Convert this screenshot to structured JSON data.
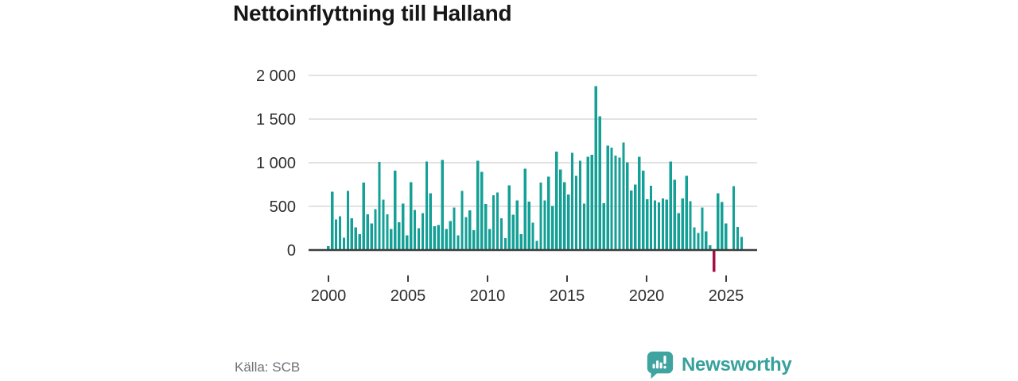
{
  "page": {
    "title": "Nettoinflyttning till Halland",
    "source": "Källa: SCB"
  },
  "brand": {
    "name": "Newsworthy",
    "color": "#36a19c"
  },
  "colors": {
    "bar_positive": "#14a096",
    "bar_negative": "#a50d45",
    "gridline": "#d9d9d9",
    "axis_line": "#3d3d3d",
    "tick_text": "#2e2e2e",
    "source_text": "#6e7176",
    "background": "#ffffff"
  },
  "chart_data": {
    "type": "bar",
    "title": "Nettoinflyttning till Halland",
    "source": "Källa: SCB",
    "x_unit": "quarter",
    "x_start": "2000-Q1",
    "x_tick_labels": [
      "2000",
      "2005",
      "2010",
      "2015",
      "2020",
      "2025"
    ],
    "y_ticks": [
      0,
      500,
      1000,
      1500,
      2000
    ],
    "y_tick_labels": [
      "0",
      "500",
      "1 000",
      "1 500",
      "2 000"
    ],
    "ylim": [
      -320,
      2090
    ],
    "grid": "horizontal-light",
    "legend": "none",
    "bar_color": "#14a096",
    "negative_bar_color": "#a50d45",
    "values": [
      45,
      667,
      348,
      385,
      142,
      676,
      364,
      258,
      182,
      773,
      409,
      303,
      470,
      1009,
      576,
      409,
      242,
      909,
      318,
      530,
      167,
      779,
      461,
      252,
      424,
      1015,
      651,
      273,
      288,
      1030,
      242,
      333,
      485,
      167,
      676,
      379,
      455,
      227,
      1021,
      894,
      527,
      242,
      627,
      658,
      364,
      136,
      742,
      403,
      567,
      182,
      933,
      555,
      312,
      106,
      773,
      567,
      839,
      506,
      1127,
      924,
      779,
      636,
      1112,
      848,
      1021,
      530,
      1070,
      1091,
      1879,
      1530,
      536,
      1197,
      1173,
      1082,
      1061,
      1233,
      1006,
      682,
      748,
      1070,
      909,
      582,
      736,
      567,
      545,
      591,
      576,
      1015,
      803,
      424,
      590,
      848,
      560,
      258,
      197,
      485,
      212,
      55,
      -250,
      651,
      551,
      303,
      0,
      733,
      264,
      152
    ]
  }
}
